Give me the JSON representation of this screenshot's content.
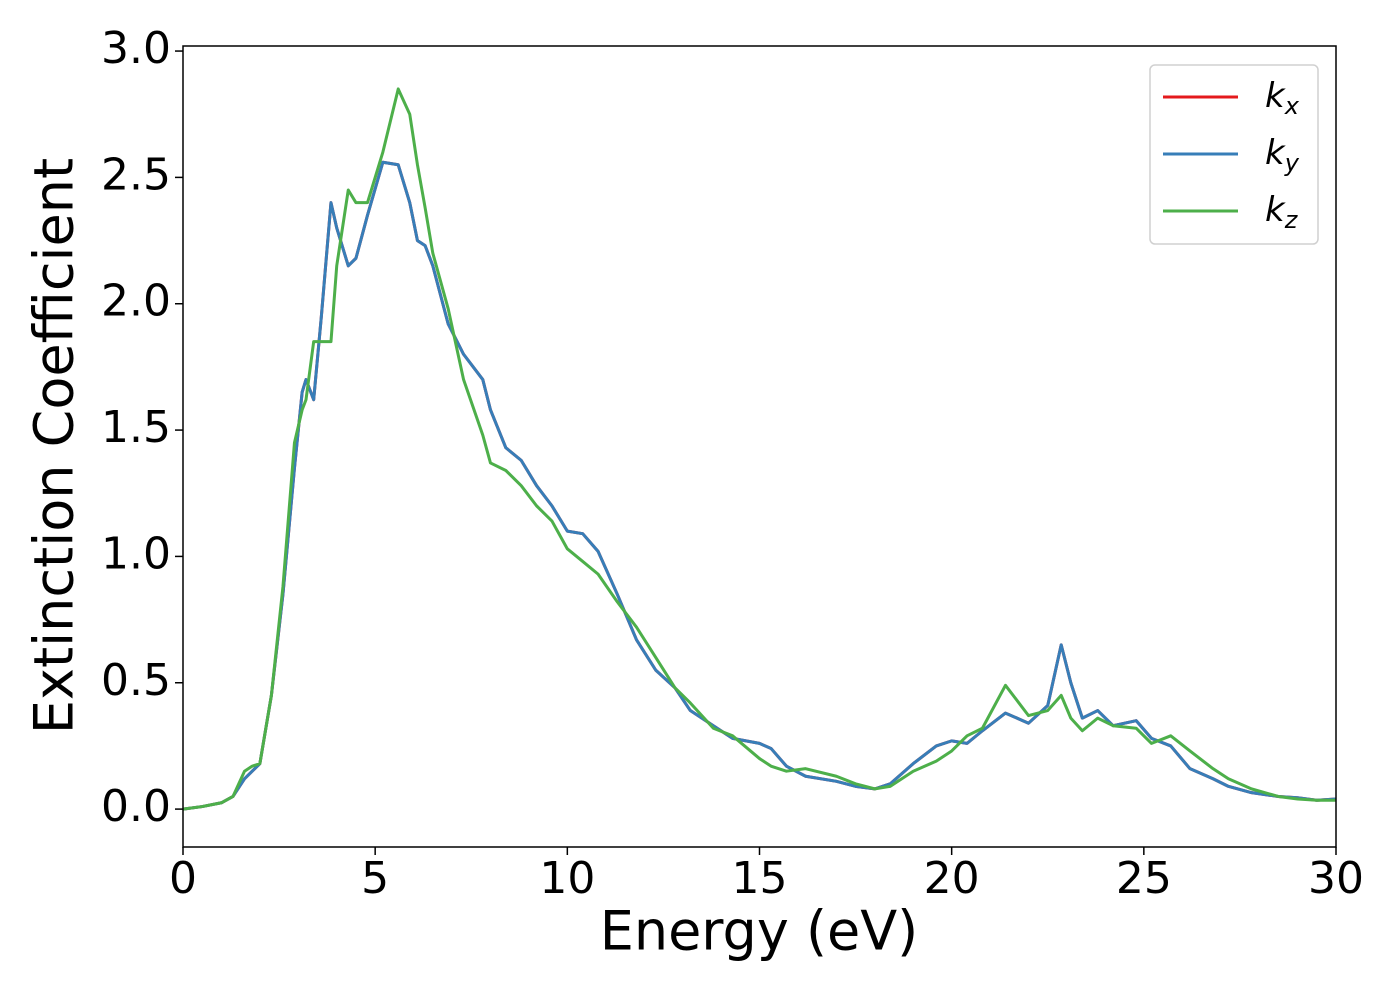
{
  "chart_data": {
    "type": "line",
    "xlabel": "Energy (eV)",
    "ylabel": "Extinction Coefficient",
    "x": [
      0,
      0.5,
      1.0,
      1.3,
      1.6,
      1.8,
      2.0,
      2.3,
      2.6,
      2.9,
      3.1,
      3.2,
      3.4,
      3.6,
      3.85,
      4.0,
      4.3,
      4.5,
      4.8,
      5.2,
      5.6,
      5.9,
      6.1,
      6.3,
      6.5,
      6.9,
      7.3,
      7.8,
      8.0,
      8.4,
      8.8,
      9.2,
      9.6,
      10.0,
      10.4,
      10.8,
      11.3,
      11.8,
      12.3,
      12.8,
      13.2,
      13.8,
      14.3,
      15.0,
      15.3,
      15.7,
      16.2,
      17.0,
      17.5,
      18.0,
      18.4,
      19.0,
      19.6,
      20.0,
      20.4,
      20.8,
      21.4,
      22.0,
      22.5,
      22.85,
      23.1,
      23.4,
      23.8,
      24.2,
      24.8,
      25.2,
      25.7,
      26.2,
      26.8,
      27.2,
      27.8,
      28.5,
      29.0,
      29.5,
      30.0
    ],
    "series": [
      {
        "name": "k_x",
        "color": "#e41a1c",
        "values": [
          0.0,
          0.01,
          0.025,
          0.05,
          0.12,
          0.15,
          0.18,
          0.45,
          0.85,
          1.35,
          1.65,
          1.7,
          1.62,
          1.95,
          2.4,
          2.3,
          2.15,
          2.18,
          2.35,
          2.56,
          2.55,
          2.4,
          2.25,
          2.23,
          2.15,
          1.92,
          1.8,
          1.7,
          1.58,
          1.43,
          1.38,
          1.28,
          1.2,
          1.1,
          1.09,
          1.02,
          0.85,
          0.67,
          0.55,
          0.48,
          0.39,
          0.33,
          0.28,
          0.26,
          0.24,
          0.17,
          0.13,
          0.11,
          0.09,
          0.08,
          0.1,
          0.18,
          0.25,
          0.27,
          0.26,
          0.31,
          0.38,
          0.34,
          0.41,
          0.65,
          0.5,
          0.36,
          0.39,
          0.33,
          0.35,
          0.28,
          0.25,
          0.16,
          0.12,
          0.09,
          0.065,
          0.05,
          0.045,
          0.035,
          0.04
        ]
      },
      {
        "name": "k_y",
        "color": "#377eb8",
        "values": [
          0.0,
          0.01,
          0.025,
          0.05,
          0.12,
          0.15,
          0.18,
          0.45,
          0.85,
          1.35,
          1.65,
          1.7,
          1.62,
          1.95,
          2.4,
          2.3,
          2.15,
          2.18,
          2.35,
          2.56,
          2.55,
          2.4,
          2.25,
          2.23,
          2.15,
          1.92,
          1.8,
          1.7,
          1.58,
          1.43,
          1.38,
          1.28,
          1.2,
          1.1,
          1.09,
          1.02,
          0.85,
          0.67,
          0.55,
          0.48,
          0.39,
          0.33,
          0.28,
          0.26,
          0.24,
          0.17,
          0.13,
          0.11,
          0.09,
          0.08,
          0.1,
          0.18,
          0.25,
          0.27,
          0.26,
          0.31,
          0.38,
          0.34,
          0.41,
          0.65,
          0.5,
          0.36,
          0.39,
          0.33,
          0.35,
          0.28,
          0.25,
          0.16,
          0.12,
          0.09,
          0.065,
          0.05,
          0.045,
          0.035,
          0.04
        ]
      },
      {
        "name": "k_z",
        "color": "#4daf4a",
        "values": [
          0.0,
          0.01,
          0.025,
          0.05,
          0.15,
          0.17,
          0.18,
          0.45,
          0.88,
          1.45,
          1.58,
          1.62,
          1.85,
          1.85,
          1.85,
          2.15,
          2.45,
          2.4,
          2.4,
          2.6,
          2.85,
          2.75,
          2.55,
          2.38,
          2.2,
          1.98,
          1.7,
          1.48,
          1.37,
          1.34,
          1.28,
          1.2,
          1.14,
          1.03,
          0.98,
          0.93,
          0.82,
          0.72,
          0.6,
          0.48,
          0.42,
          0.32,
          0.29,
          0.2,
          0.17,
          0.15,
          0.16,
          0.13,
          0.1,
          0.08,
          0.09,
          0.15,
          0.19,
          0.23,
          0.29,
          0.32,
          0.49,
          0.37,
          0.39,
          0.45,
          0.36,
          0.31,
          0.36,
          0.33,
          0.32,
          0.26,
          0.29,
          0.23,
          0.16,
          0.12,
          0.08,
          0.05,
          0.04,
          0.035,
          0.035
        ]
      }
    ],
    "xlim": [
      0,
      30
    ],
    "xticks": [
      0,
      5,
      10,
      15,
      20,
      25,
      30
    ],
    "ylim": [
      -0.15,
      3.02
    ],
    "yticks": [
      {
        "value": 0,
        "label": "0.0"
      },
      0.5,
      {
        "value": 1,
        "label": "1.0"
      },
      1.5,
      {
        "value": 2,
        "label": "2.0"
      },
      2.5,
      {
        "value": 3,
        "label": "3.0"
      }
    ],
    "grid": false,
    "legend": "upper right"
  }
}
